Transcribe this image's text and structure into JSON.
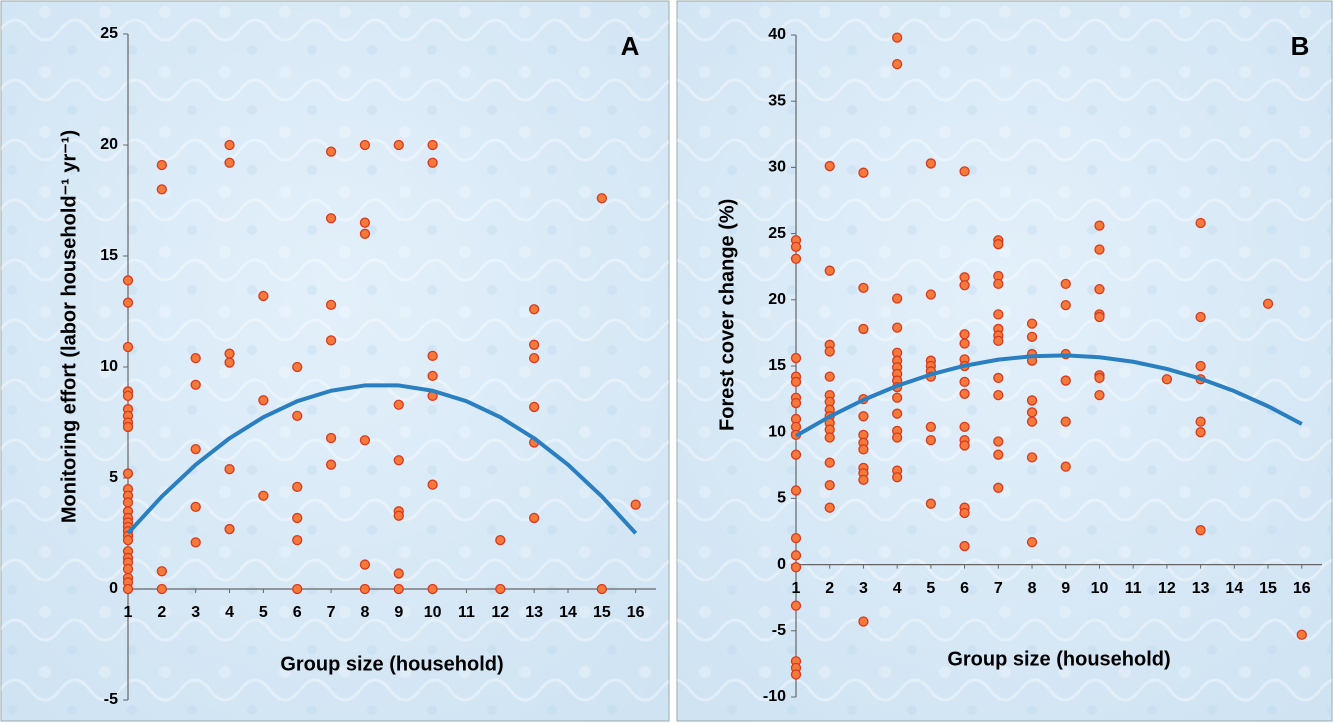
{
  "chart_data": [
    {
      "type": "scatter",
      "label": "A",
      "xlabel": "Group size (household)",
      "ylabel": "Monitoring effort (labor household⁻¹ yr⁻¹)",
      "xlim": [
        1,
        16.6
      ],
      "ylim": [
        -5,
        25
      ],
      "xticks": [
        1,
        2,
        3,
        4,
        5,
        6,
        7,
        8,
        9,
        10,
        11,
        12,
        13,
        14,
        15,
        16
      ],
      "yticks": [
        -5,
        0,
        5,
        10,
        15,
        20,
        25
      ],
      "series": [
        {
          "type": "scatter",
          "color": "#f47a3c",
          "x": [
            1,
            1,
            1,
            1,
            1,
            1,
            1,
            1,
            1,
            1,
            1,
            1,
            1,
            1,
            1,
            1,
            1,
            1,
            1,
            1,
            1,
            1,
            1,
            1,
            1,
            1,
            1,
            2,
            2,
            2,
            2,
            3,
            3,
            3,
            3,
            3,
            4,
            4,
            4,
            4,
            4,
            4,
            5,
            5,
            5,
            6,
            6,
            6,
            6,
            6,
            6,
            7,
            7,
            7,
            7,
            7,
            7,
            8,
            8,
            8,
            8,
            8,
            8,
            9,
            9,
            9,
            9,
            9,
            9,
            9,
            10,
            10,
            10,
            10,
            10,
            10,
            10,
            12,
            12,
            13,
            13,
            13,
            13,
            13,
            13,
            15,
            15,
            16
          ],
          "values": [
            13.9,
            12.9,
            10.9,
            8.9,
            8.7,
            8.1,
            7.8,
            7.5,
            7.3,
            5.2,
            4.5,
            4.2,
            3.9,
            3.5,
            3.2,
            3.0,
            2.8,
            2.6,
            2.4,
            2.2,
            1.7,
            1.4,
            1.2,
            0.9,
            0.5,
            0.3,
            0,
            19.1,
            18.0,
            0.8,
            0,
            10.4,
            9.2,
            6.3,
            3.7,
            2.1,
            20,
            19.2,
            10.6,
            10.2,
            5.4,
            2.7,
            13.2,
            8.5,
            4.2,
            10,
            7.8,
            4.6,
            3.2,
            2.2,
            0,
            19.7,
            16.7,
            12.8,
            11.2,
            6.8,
            5.6,
            20,
            16.5,
            16,
            6.7,
            1.1,
            0,
            20,
            8.3,
            5.8,
            3.5,
            3.3,
            0.7,
            0,
            20,
            19.2,
            10.5,
            9.6,
            8.7,
            4.7,
            0,
            2.2,
            0,
            12.6,
            11,
            10.4,
            8.2,
            6.6,
            3.2,
            17.6,
            0,
            3.8
          ]
        },
        {
          "type": "line",
          "color": "#2a7fc1",
          "x": [
            1,
            2,
            3,
            4,
            5,
            6,
            7,
            8,
            9,
            10,
            11,
            12,
            13,
            14,
            15,
            16
          ],
          "values": [
            2.51,
            4.17,
            5.6,
            6.79,
            7.74,
            8.46,
            8.93,
            9.17,
            9.17,
            8.93,
            8.46,
            7.74,
            6.79,
            5.6,
            4.17,
            2.51
          ]
        }
      ]
    },
    {
      "type": "scatter",
      "label": "B",
      "xlabel": "Group size (household)",
      "ylabel": "Forest cover change (%)",
      "xlim": [
        1,
        16.6
      ],
      "ylim": [
        -10,
        40
      ],
      "xticks": [
        1,
        2,
        3,
        4,
        5,
        6,
        7,
        8,
        9,
        10,
        11,
        12,
        13,
        14,
        15,
        16
      ],
      "yticks": [
        -10,
        -5,
        0,
        5,
        10,
        15,
        20,
        25,
        30,
        35,
        40
      ],
      "series": [
        {
          "type": "scatter",
          "color": "#f47a3c",
          "x": [
            1,
            1,
            1,
            1,
            1,
            1,
            1,
            1,
            1,
            1,
            1,
            1,
            1,
            1,
            1,
            1,
            1,
            1,
            1,
            1,
            2,
            2,
            2,
            2,
            2,
            2,
            2,
            2,
            2,
            2,
            2,
            2,
            2,
            2,
            2,
            3,
            3,
            3,
            3,
            3,
            3,
            3,
            3,
            3,
            3,
            3,
            3,
            4,
            4,
            4,
            4,
            4,
            4,
            4,
            4,
            4,
            4,
            4,
            4,
            4,
            4,
            4,
            4,
            5,
            5,
            5,
            5,
            5,
            5,
            5,
            5,
            5,
            6,
            6,
            6,
            6,
            6,
            6,
            6,
            6,
            6,
            6,
            6,
            6,
            6,
            6,
            6,
            7,
            7,
            7,
            7,
            7,
            7,
            7,
            7,
            7,
            7,
            7,
            7,
            7,
            8,
            8,
            8,
            8,
            8,
            8,
            8,
            8,
            8,
            9,
            9,
            9,
            9,
            9,
            9,
            10,
            10,
            10,
            10,
            10,
            10,
            10,
            10,
            12,
            13,
            13,
            13,
            13,
            13,
            13,
            13,
            15,
            16
          ],
          "values": [
            24.5,
            24.0,
            23.1,
            15.6,
            14.2,
            13.8,
            12.6,
            12.2,
            11.0,
            10.4,
            9.8,
            8.3,
            5.6,
            2.0,
            0.7,
            -0.2,
            -3.1,
            -7.3,
            -7.8,
            -8.3,
            30.1,
            22.2,
            16.6,
            16.1,
            14.2,
            12.8,
            12.3,
            11.7,
            11.2,
            10.7,
            10.2,
            9.6,
            7.7,
            6.0,
            4.3,
            29.6,
            20.9,
            17.8,
            12.5,
            11.2,
            9.8,
            9.2,
            8.7,
            7.3,
            6.9,
            6.4,
            -4.3,
            39.8,
            37.8,
            20.1,
            17.9,
            16.0,
            15.4,
            14.9,
            14.4,
            13.9,
            13.4,
            12.6,
            11.4,
            10.1,
            9.6,
            7.1,
            6.6,
            30.3,
            20.4,
            15.4,
            15.0,
            14.6,
            14.2,
            10.4,
            9.4,
            4.6,
            29.7,
            21.7,
            21.1,
            17.4,
            16.7,
            15.5,
            15.0,
            13.8,
            12.9,
            10.4,
            9.4,
            9.0,
            4.3,
            3.9,
            1.4,
            24.5,
            24.2,
            21.8,
            21.2,
            18.9,
            17.8,
            17.3,
            16.9,
            14.1,
            12.8,
            9.3,
            8.3,
            5.8,
            18.2,
            17.2,
            15.9,
            15.4,
            12.4,
            11.5,
            10.8,
            8.1,
            1.7,
            21.2,
            19.6,
            15.9,
            13.9,
            10.8,
            7.4,
            25.6,
            23.8,
            20.8,
            18.9,
            18.7,
            14.3,
            14.1,
            12.8,
            14.0,
            25.8,
            18.7,
            15.0,
            14.0,
            10.8,
            10.0,
            2.6,
            19.7,
            -5.3
          ]
        },
        {
          "type": "line",
          "color": "#2a7fc1",
          "x": [
            1,
            2,
            3,
            4,
            5,
            6,
            7,
            8,
            9,
            10,
            11,
            12,
            13,
            14,
            15,
            16
          ],
          "values": [
            9.72,
            11.18,
            12.44,
            13.5,
            14.36,
            15.02,
            15.48,
            15.74,
            15.8,
            15.66,
            15.32,
            14.78,
            14.04,
            13.1,
            11.96,
            10.62
          ]
        }
      ]
    }
  ]
}
